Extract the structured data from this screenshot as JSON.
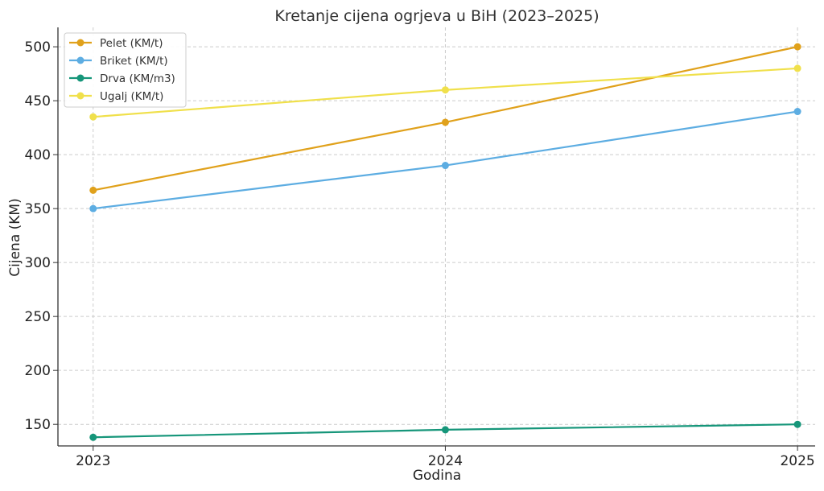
{
  "chart_data": {
    "type": "line",
    "title": "Kretanje cijena ogrjeva u BiH (2023–2025)",
    "xlabel": "Godina",
    "ylabel": "Cijena (KM)",
    "x": [
      "2023",
      "2024",
      "2025"
    ],
    "xlim": [
      2022.9,
      2025.05
    ],
    "ylim": [
      130,
      518
    ],
    "yticks": [
      150,
      200,
      250,
      300,
      350,
      400,
      450,
      500
    ],
    "grid": true,
    "legend_position": "top-left",
    "series": [
      {
        "name": "Pelet (KM/t)",
        "color": "#E0A11B",
        "values": [
          367,
          430,
          500
        ]
      },
      {
        "name": "Briket (KM/t)",
        "color": "#5DADE2",
        "values": [
          350,
          390,
          440
        ]
      },
      {
        "name": "Drva (KM/m3)",
        "color": "#16967A",
        "values": [
          138,
          145,
          150
        ]
      },
      {
        "name": "Ugalj (KM/t)",
        "color": "#F0E04B",
        "values": [
          435,
          460,
          480
        ]
      }
    ]
  }
}
